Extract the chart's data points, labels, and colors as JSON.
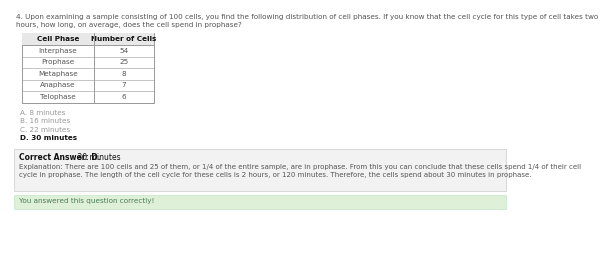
{
  "question_text": "4. Upon examining a sample consisting of 100 cells, you find the following distribution of cell phases. If you know that the cell cycle for this type of cell takes two\nhours, how long, on average, does the cell spend in prophase?",
  "table_headers": [
    "Cell Phase",
    "Number of Cells"
  ],
  "table_rows": [
    [
      "Interphase",
      "54"
    ],
    [
      "Prophase",
      "25"
    ],
    [
      "Metaphase",
      "8"
    ],
    [
      "Anaphase",
      "7"
    ],
    [
      "Telophase",
      "6"
    ]
  ],
  "choices": [
    [
      "A.",
      "8 minutes",
      false
    ],
    [
      "B.",
      "16 minutes",
      false
    ],
    [
      "C.",
      "22 minutes",
      false
    ],
    [
      "D.",
      "30 minutes",
      true
    ]
  ],
  "correct_answer_bold": "Correct Answer: D.",
  "correct_answer_rest": " 30 minutes",
  "explanation_line1": "Explanation: There are 100 cells and 25 of them, or 1/4 of the entire sample, are in prophase. From this you can conclude that these cells spend 1/4 of their cell",
  "explanation_line2": "cycle in prophase. The length of the cell cycle for these cells is 2 hours, or 120 minutes. Therefore, the cells spend about 30 minutes in prophase.",
  "footer_text": "You answered this question correctly!",
  "bg_color": "#ffffff",
  "answer_box_color": "#f2f2f2",
  "footer_box_color": "#dff0d8",
  "table_header_bg": "#e8e8e8",
  "table_border_color": "#999999",
  "text_color": "#555555",
  "bold_color": "#111111",
  "choice_gray_color": "#999999",
  "choice_bold_color": "#111111",
  "answer_box_border": "#cccccc",
  "footer_box_border": "#c3e6cb"
}
